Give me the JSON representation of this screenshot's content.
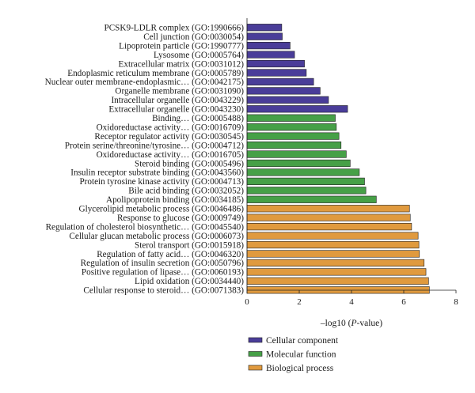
{
  "chart_data": {
    "type": "bar",
    "orientation": "horizontal",
    "xlabel_prefix": "–log10 (",
    "xlabel_italic": "P",
    "xlabel_suffix": "-value)",
    "xlim": [
      0,
      8
    ],
    "xticks": [
      0,
      2,
      4,
      6,
      8
    ],
    "grid": false,
    "legend_position": "bottom",
    "groups": [
      {
        "name": "Cellular component",
        "color": "#4a3d99"
      },
      {
        "name": "Molecular function",
        "color": "#46a047"
      },
      {
        "name": "Biological process",
        "color": "#e09a3e"
      }
    ],
    "categories": [
      {
        "label": "PCSK9-LDLR complex (GO:1990666)",
        "value": 1.33,
        "group": 0
      },
      {
        "label": "Cell junction (GO:0030054)",
        "value": 1.35,
        "group": 0
      },
      {
        "label": "Lipoprotein particle (GO:1990777)",
        "value": 1.65,
        "group": 0
      },
      {
        "label": "Lysosome (GO:0005764)",
        "value": 1.82,
        "group": 0
      },
      {
        "label": "Extracellular matrix (GO:0031012)",
        "value": 2.2,
        "group": 0
      },
      {
        "label": "Endoplasmic reticulum membrane (GO:0005789)",
        "value": 2.27,
        "group": 0
      },
      {
        "label": "Nuclear outer membrane-endoplasmic… (GO:0042175)",
        "value": 2.55,
        "group": 0
      },
      {
        "label": "Organelle membrane (GO:0031090)",
        "value": 2.8,
        "group": 0
      },
      {
        "label": "Intracellular organelle (GO:0043229)",
        "value": 3.12,
        "group": 0
      },
      {
        "label": "Extracellular organelle (GO:0043230)",
        "value": 3.85,
        "group": 0
      },
      {
        "label": "Binding… (GO:0005488)",
        "value": 3.38,
        "group": 1
      },
      {
        "label": "Oxidoreductase activity… (GO:0016709)",
        "value": 3.42,
        "group": 1
      },
      {
        "label": "Receptor regulator activity (GO:0030545)",
        "value": 3.52,
        "group": 1
      },
      {
        "label": "Protein serine/threonine/tyrosine… (GO:0004712)",
        "value": 3.6,
        "group": 1
      },
      {
        "label": "Oxidoreductase activity… (GO:0016705)",
        "value": 3.8,
        "group": 1
      },
      {
        "label": "Steroid binding (GO:0005496)",
        "value": 3.95,
        "group": 1
      },
      {
        "label": "Insulin receptor substrate binding (GO:0043560)",
        "value": 4.3,
        "group": 1
      },
      {
        "label": "Protein tyrosine kinase activity (GO:0004713)",
        "value": 4.5,
        "group": 1
      },
      {
        "label": "Bile acid binding (GO:0032052)",
        "value": 4.55,
        "group": 1
      },
      {
        "label": "Apolipoprotein binding (GO:0034185)",
        "value": 4.95,
        "group": 1
      },
      {
        "label": "Glycerolipid metabolic process (GO:0046486)",
        "value": 6.22,
        "group": 2
      },
      {
        "label": "Response to glucose (GO:0009749)",
        "value": 6.25,
        "group": 2
      },
      {
        "label": "Regulation of cholesterol biosynthetic… (GO:0045540)",
        "value": 6.3,
        "group": 2
      },
      {
        "label": "Cellular glucan metabolic process (GO:0006073)",
        "value": 6.55,
        "group": 2
      },
      {
        "label": "Sterol transport (GO:0015918)",
        "value": 6.58,
        "group": 2
      },
      {
        "label": "Regulation of fatty acid… (GO:0046320)",
        "value": 6.6,
        "group": 2
      },
      {
        "label": "Regulation of insulin secretion (GO:0050796)",
        "value": 6.78,
        "group": 2
      },
      {
        "label": "Positive regulation of lipase… (GO:0060193)",
        "value": 6.85,
        "group": 2
      },
      {
        "label": "Lipid oxidation (GO:0034440)",
        "value": 6.95,
        "group": 2
      },
      {
        "label": "Cellular response to steroid… (GO:0071383)",
        "value": 6.98,
        "group": 2
      }
    ]
  }
}
